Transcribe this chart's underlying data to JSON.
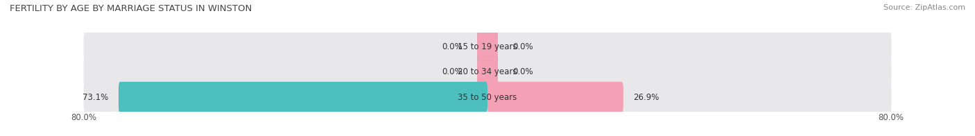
{
  "title": "FERTILITY BY AGE BY MARRIAGE STATUS IN WINSTON",
  "source": "Source: ZipAtlas.com",
  "age_groups": [
    "15 to 19 years",
    "20 to 34 years",
    "35 to 50 years"
  ],
  "married": [
    0.0,
    0.0,
    73.1
  ],
  "unmarried": [
    0.0,
    0.0,
    26.9
  ],
  "xlim": 80.0,
  "bar_height": 0.62,
  "married_color": "#4dbfbf",
  "unmarried_color": "#f4a0b5",
  "bg_bar_color": "#e8e8ea",
  "background_color": "#ffffff",
  "title_fontsize": 9.5,
  "label_fontsize": 8.5,
  "tick_fontsize": 8.5,
  "legend_fontsize": 9,
  "source_fontsize": 8
}
